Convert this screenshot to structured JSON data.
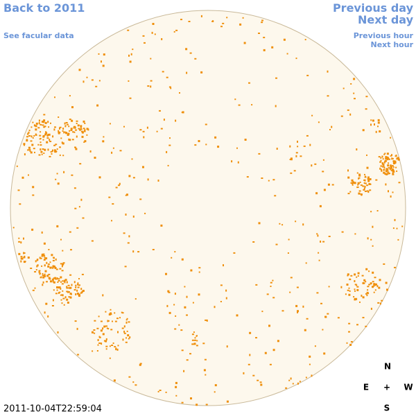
{
  "links": {
    "back": "Back to 2011",
    "facular_data": "See facular data",
    "previous_day": "Previous day",
    "next_day": "Next day",
    "previous_hour": "Previous hour",
    "next_hour": "Next hour"
  },
  "timestamp": "2011-10-04T22:59:04",
  "compass": {
    "north": "N",
    "east": "E",
    "center": "+",
    "west": "W",
    "south": "S"
  }
}
